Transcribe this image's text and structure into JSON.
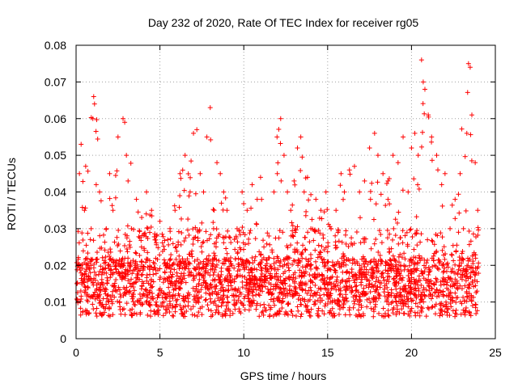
{
  "chart_data": {
    "type": "scatter",
    "title": "Day 232 of 2020, Rate Of TEC Index for receiver rg05",
    "xlabel": "GPS time / hours",
    "ylabel": "ROTI / TECUs",
    "xlim": [
      0,
      25
    ],
    "ylim": [
      0,
      0.08
    ],
    "x_ticks": [
      0,
      5,
      10,
      15,
      20,
      25
    ],
    "y_ticks": [
      0,
      0.01,
      0.02,
      0.03,
      0.04,
      0.05,
      0.06,
      0.07,
      0.08
    ],
    "x_tick_labels": [
      "0",
      "5",
      "10",
      "15",
      "20",
      "25"
    ],
    "y_tick_labels": [
      "0",
      "0.01",
      "0.02",
      "0.03",
      "0.04",
      "0.05",
      "0.06",
      "0.07",
      "0.08"
    ],
    "grid": true,
    "marker": "+",
    "series": [
      {
        "name": "ROTI",
        "color": "#ff0000",
        "x": [
          0.05,
          0.2,
          0.3,
          0.5,
          0.7,
          0.9,
          1.0,
          1.05,
          1.1,
          1.2,
          1.4,
          1.6,
          1.8,
          2.0,
          2.2,
          2.5,
          2.8,
          2.9,
          3.0,
          3.1,
          3.3,
          3.6,
          3.9,
          4.2,
          4.5,
          4.8,
          5.0,
          5.3,
          5.6,
          5.9,
          6.2,
          6.5,
          6.8,
          7.0,
          7.2,
          7.4,
          7.6,
          7.8,
          8.0,
          8.2,
          8.4,
          8.6,
          8.8,
          9.0,
          9.3,
          9.6,
          9.9,
          10.2,
          10.5,
          10.8,
          11.0,
          11.2,
          11.5,
          11.8,
          12.0,
          12.2,
          12.4,
          12.6,
          12.8,
          13.0,
          13.2,
          13.4,
          13.6,
          13.8,
          14.0,
          14.3,
          14.6,
          14.9,
          15.2,
          15.5,
          15.8,
          16.0,
          16.3,
          16.6,
          16.9,
          17.2,
          17.5,
          17.8,
          18.0,
          18.3,
          18.6,
          18.9,
          19.2,
          19.5,
          19.8,
          20.0,
          20.2,
          20.4,
          20.6,
          20.7,
          20.8,
          21.0,
          21.2,
          21.5,
          21.8,
          22.0,
          22.3,
          22.6,
          22.9,
          23.1,
          23.3,
          23.4,
          23.5,
          23.6,
          23.8,
          23.95
        ],
        "y": [
          0.015,
          0.045,
          0.053,
          0.035,
          0.02,
          0.03,
          0.06,
          0.066,
          0.064,
          0.042,
          0.04,
          0.015,
          0.03,
          0.045,
          0.035,
          0.055,
          0.06,
          0.059,
          0.05,
          0.043,
          0.03,
          0.038,
          0.025,
          0.04,
          0.035,
          0.028,
          0.032,
          0.018,
          0.03,
          0.035,
          0.045,
          0.05,
          0.04,
          0.056,
          0.057,
          0.045,
          0.04,
          0.055,
          0.063,
          0.03,
          0.048,
          0.045,
          0.04,
          0.035,
          0.02,
          0.03,
          0.04,
          0.035,
          0.042,
          0.038,
          0.044,
          0.025,
          0.028,
          0.04,
          0.045,
          0.06,
          0.05,
          0.04,
          0.035,
          0.043,
          0.052,
          0.055,
          0.04,
          0.044,
          0.03,
          0.038,
          0.035,
          0.04,
          0.03,
          0.035,
          0.045,
          0.04,
          0.046,
          0.047,
          0.04,
          0.043,
          0.052,
          0.056,
          0.05,
          0.045,
          0.043,
          0.05,
          0.048,
          0.055,
          0.04,
          0.052,
          0.056,
          0.05,
          0.076,
          0.07,
          0.068,
          0.061,
          0.055,
          0.05,
          0.042,
          0.045,
          0.03,
          0.038,
          0.045,
          0.03,
          0.056,
          0.075,
          0.074,
          0.061,
          0.048,
          0.035
        ]
      }
    ]
  }
}
